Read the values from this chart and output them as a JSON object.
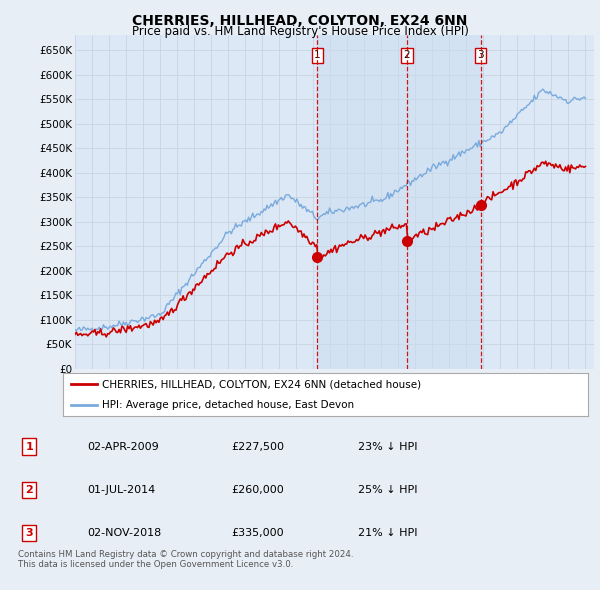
{
  "title": "CHERRIES, HILLHEAD, COLYTON, EX24 6NN",
  "subtitle": "Price paid vs. HM Land Registry's House Price Index (HPI)",
  "ylim": [
    0,
    680000
  ],
  "yticks": [
    0,
    50000,
    100000,
    150000,
    200000,
    250000,
    300000,
    350000,
    400000,
    450000,
    500000,
    550000,
    600000,
    650000
  ],
  "xlim": [
    1995.0,
    2025.5
  ],
  "bg_color": "#e8eef5",
  "plot_bg_color": "#dce8f5",
  "grid_color": "#c8d4e0",
  "red_line_color": "#cc0000",
  "blue_line_color": "#7aaadd",
  "transaction_line_color": "#cc0000",
  "fill_color": "#ccddf0",
  "transactions": [
    {
      "year": 2009.25,
      "price": 227500,
      "label": "1"
    },
    {
      "year": 2014.5,
      "price": 260000,
      "label": "2"
    },
    {
      "year": 2018.83,
      "price": 335000,
      "label": "3"
    }
  ],
  "legend_entries": [
    "CHERRIES, HILLHEAD, COLYTON, EX24 6NN (detached house)",
    "HPI: Average price, detached house, East Devon"
  ],
  "footnote": "Contains HM Land Registry data © Crown copyright and database right 2024.\nThis data is licensed under the Open Government Licence v3.0.",
  "table_rows": [
    [
      "1",
      "02-APR-2009",
      "£227,500",
      "23% ↓ HPI"
    ],
    [
      "2",
      "01-JUL-2014",
      "£260,000",
      "25% ↓ HPI"
    ],
    [
      "3",
      "02-NOV-2018",
      "£335,000",
      "21% ↓ HPI"
    ]
  ]
}
